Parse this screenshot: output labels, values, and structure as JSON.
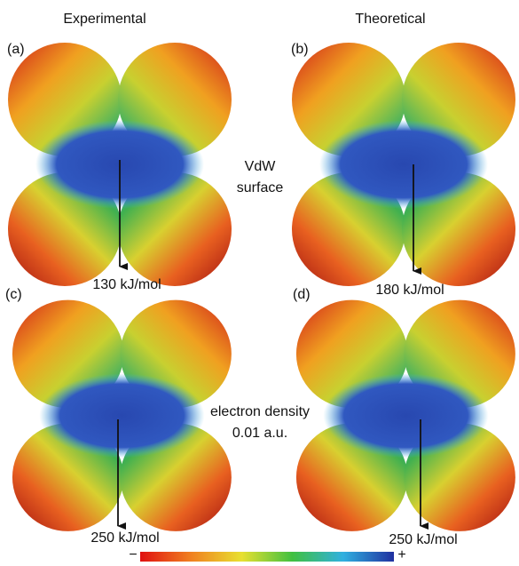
{
  "headers": {
    "left": "Experimental",
    "right": "Theoretical"
  },
  "panels": [
    {
      "label": "(a)",
      "energy": "130 kJ/mol"
    },
    {
      "label": "(b)",
      "energy": "180 kJ/mol"
    },
    {
      "label": "(c)",
      "energy": "250 kJ/mol"
    },
    {
      "label": "(d)",
      "energy": "250 kJ/mol"
    }
  ],
  "row_labels": {
    "top": [
      "VdW",
      "surface"
    ],
    "bottom": [
      "electron density",
      "0.01 a.u."
    ]
  },
  "colorbar": {
    "min_label": "−",
    "max_label": "+"
  }
}
